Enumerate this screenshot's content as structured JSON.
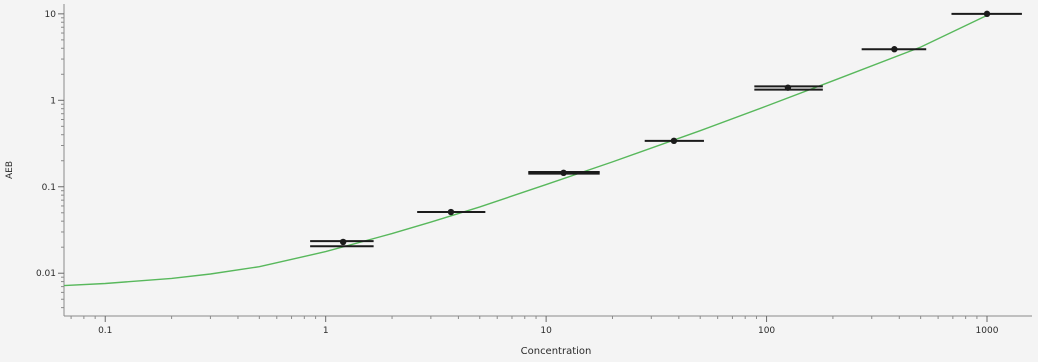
{
  "chart_data": {
    "type": "scatter",
    "title": "",
    "xlabel": "Concentration",
    "ylabel": "AEB",
    "xscale": "log",
    "yscale": "log",
    "xlim": [
      0.065,
      1600
    ],
    "ylim": [
      0.0032,
      13
    ],
    "grid": false,
    "x_ticks": [
      {
        "value": 0.1,
        "label": "0.1"
      },
      {
        "value": 1,
        "label": "1"
      },
      {
        "value": 10,
        "label": "10"
      },
      {
        "value": 100,
        "label": "100"
      },
      {
        "value": 1000,
        "label": "1000"
      }
    ],
    "y_ticks": [
      {
        "value": 0.01,
        "label": "0.01"
      },
      {
        "value": 0.1,
        "label": "0.1"
      },
      {
        "value": 1,
        "label": "1"
      },
      {
        "value": 10,
        "label": "10"
      }
    ],
    "points": [
      {
        "x": 1.2,
        "y": 0.023
      },
      {
        "x": 3.7,
        "y": 0.051
      },
      {
        "x": 12,
        "y": 0.145
      },
      {
        "x": 38,
        "y": 0.34
      },
      {
        "x": 125,
        "y": 1.4
      },
      {
        "x": 380,
        "y": 3.9
      },
      {
        "x": 1000,
        "y": 10
      }
    ],
    "replicate_bars": [
      {
        "x": 1.2,
        "y": [
          0.0235,
          0.0205
        ],
        "width": [
          0.85,
          1.65
        ]
      },
      {
        "x": 3.7,
        "y": [
          0.051
        ],
        "width": [
          2.6,
          5.3
        ]
      },
      {
        "x": 12,
        "y": [
          0.148,
          0.142
        ],
        "width": [
          8.3,
          17.5
        ]
      },
      {
        "x": 38,
        "y": [
          0.34
        ],
        "width": [
          28,
          52
        ]
      },
      {
        "x": 125,
        "y": [
          1.45,
          1.33
        ],
        "width": [
          88,
          180
        ]
      },
      {
        "x": 380,
        "y": [
          3.9
        ],
        "width": [
          270,
          530
        ]
      },
      {
        "x": 1000,
        "y": [
          10
        ],
        "width": [
          690,
          1440
        ]
      }
    ],
    "fit_curve": {
      "color": "#58b85c",
      "x": [
        0.065,
        0.1,
        0.2,
        0.3,
        0.5,
        1,
        2,
        3,
        5,
        10,
        20,
        50,
        100,
        200,
        500,
        1000
      ],
      "y": [
        0.0072,
        0.0076,
        0.0087,
        0.0098,
        0.0119,
        0.0178,
        0.0287,
        0.039,
        0.0585,
        0.106,
        0.194,
        0.445,
        0.86,
        1.68,
        4.12,
        9.6
      ]
    },
    "point_color": "#1b1b1b"
  }
}
